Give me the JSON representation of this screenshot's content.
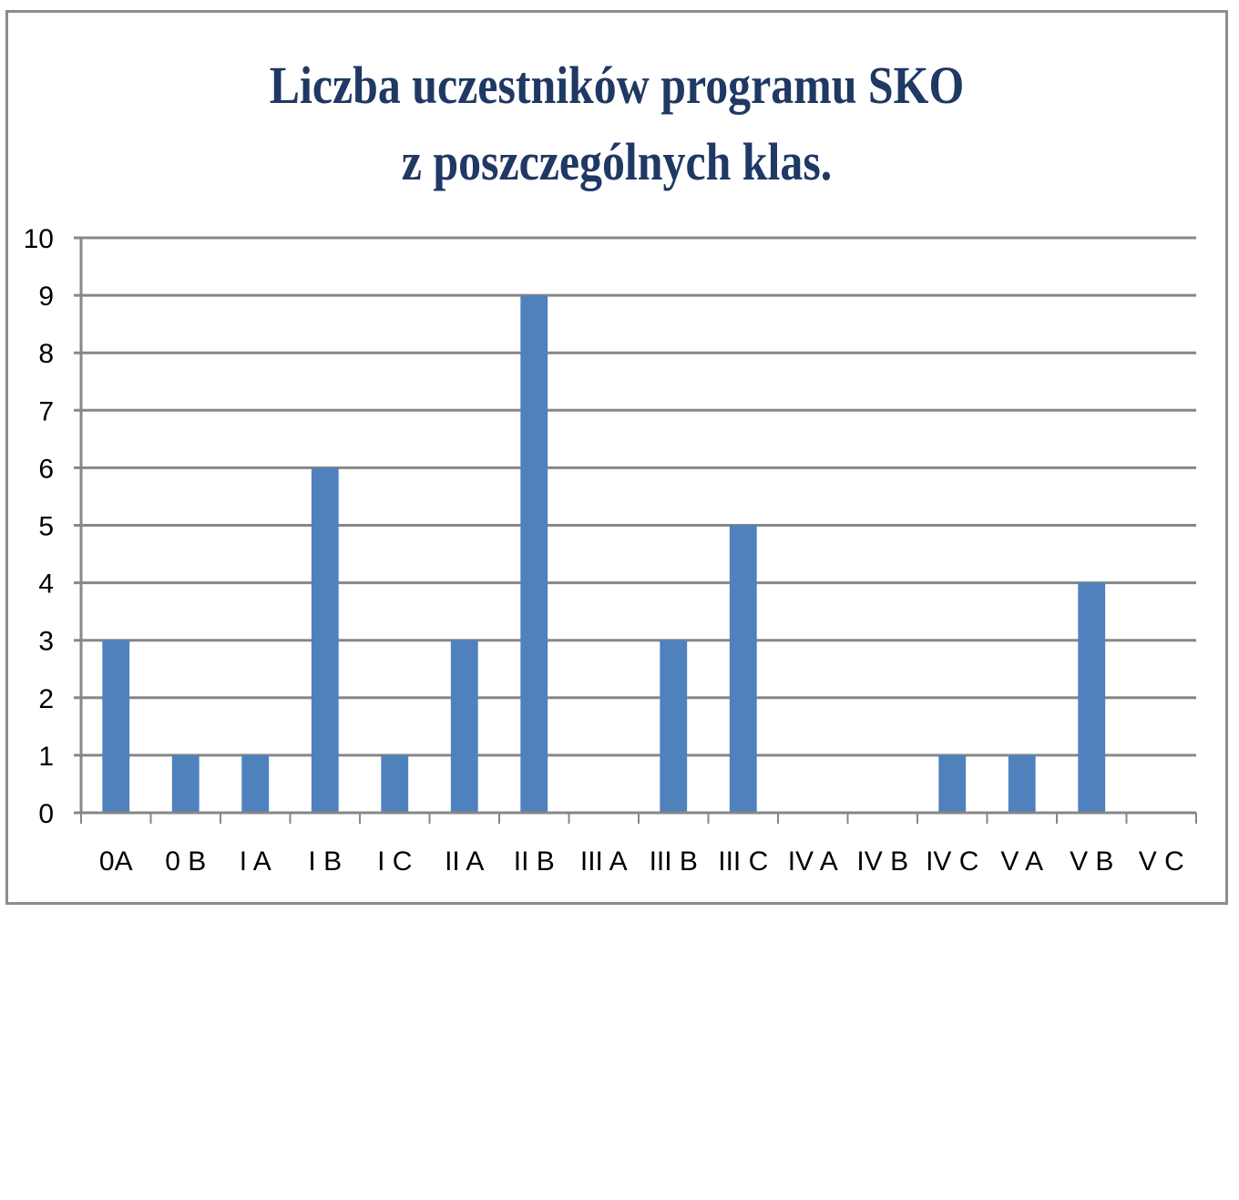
{
  "chart_data": {
    "type": "bar",
    "title_lines": [
      "Liczba uczestników programu SKO",
      "z poszczególnych klas."
    ],
    "categories": [
      "0A",
      "0 B",
      "I A",
      "I B",
      "I C",
      "II A",
      "II B",
      "III A",
      "III B",
      "III C",
      "IV A",
      "IV B",
      "IV C",
      "V A",
      "V B",
      "V C"
    ],
    "values": [
      3,
      1,
      1,
      6,
      1,
      3,
      9,
      0,
      3,
      5,
      0,
      0,
      1,
      1,
      4,
      0
    ],
    "xlabel": "",
    "ylabel": "",
    "ylim": [
      0,
      10
    ],
    "yticks": [
      0,
      1,
      2,
      3,
      4,
      5,
      6,
      7,
      8,
      9,
      10
    ],
    "grid": true,
    "legend": "none",
    "colors": {
      "bar": "#4f81bd",
      "grid": "#878787",
      "axis": "#878787",
      "title": "#1f3864",
      "frame": "#8c8c8c"
    }
  }
}
